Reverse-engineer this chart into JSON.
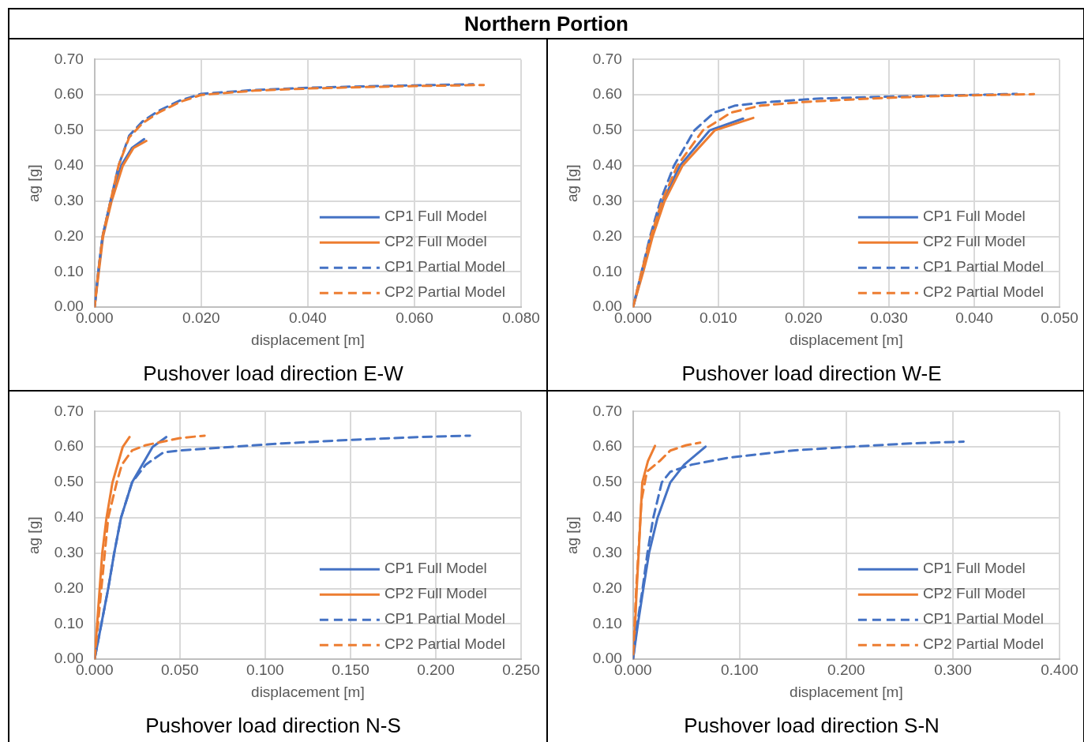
{
  "chart_data": [
    {
      "type": "other",
      "title": "Northern Portion"
    },
    {
      "type": "line",
      "title": "Pushover load direction E-W",
      "xlabel": "displacement [m]",
      "ylabel": "ag [g]",
      "grid": true,
      "legend": "bottom right",
      "marker": "none",
      "xlim": [
        0,
        0.08
      ],
      "xticks": [
        {
          "value": 0,
          "label": "0.000"
        },
        {
          "value": 0.02,
          "label": "0.020"
        },
        {
          "value": 0.04,
          "label": "0.040"
        },
        {
          "value": 0.06,
          "label": "0.060"
        },
        {
          "value": 0.08,
          "label": "0.080"
        }
      ],
      "ylim": [
        0,
        0.7
      ],
      "yticks": [
        {
          "value": 0,
          "label": "0.00"
        },
        {
          "value": 0.1,
          "label": "0.10"
        },
        {
          "value": 0.2,
          "label": "0.20"
        },
        {
          "value": 0.3,
          "label": "0.30"
        },
        {
          "value": 0.4,
          "label": "0.40"
        },
        {
          "value": 0.5,
          "label": "0.50"
        },
        {
          "value": 0.6,
          "label": "0.60"
        },
        {
          "value": 0.7,
          "label": "0.70"
        }
      ],
      "series": [
        {
          "name": "CP1 Full Model",
          "color": "#4472c4",
          "line_style": "solid",
          "x": [
            0,
            0.0007,
            0.0015,
            0.003,
            0.005,
            0.007,
            0.0093
          ],
          "values": [
            0,
            0.1,
            0.2,
            0.3,
            0.4,
            0.45,
            0.475
          ]
        },
        {
          "name": "CP2 Full Model",
          "color": "#ed7d31",
          "line_style": "solid",
          "x": [
            0,
            0.0008,
            0.0016,
            0.0032,
            0.0053,
            0.0073,
            0.0097
          ],
          "values": [
            0,
            0.1,
            0.2,
            0.3,
            0.4,
            0.45,
            0.47
          ]
        },
        {
          "name": "CP1 Partial Model",
          "color": "#4472c4",
          "line_style": "dashed",
          "x": [
            0,
            0.0007,
            0.0015,
            0.003,
            0.0045,
            0.0065,
            0.009,
            0.012,
            0.016,
            0.02,
            0.03,
            0.04,
            0.05,
            0.06,
            0.071
          ],
          "values": [
            0,
            0.1,
            0.2,
            0.3,
            0.4,
            0.485,
            0.525,
            0.555,
            0.584,
            0.603,
            0.614,
            0.62,
            0.624,
            0.627,
            0.63
          ]
        },
        {
          "name": "CP2 Partial Model",
          "color": "#ed7d31",
          "line_style": "dashed",
          "x": [
            0,
            0.0007,
            0.0015,
            0.003,
            0.0045,
            0.0065,
            0.009,
            0.012,
            0.016,
            0.02,
            0.03,
            0.04,
            0.05,
            0.06,
            0.073
          ],
          "values": [
            0,
            0.1,
            0.2,
            0.3,
            0.4,
            0.48,
            0.52,
            0.55,
            0.58,
            0.6,
            0.612,
            0.618,
            0.622,
            0.625,
            0.628
          ]
        }
      ]
    },
    {
      "type": "line",
      "title": "Pushover load direction W-E",
      "xlabel": "displacement [m]",
      "ylabel": "ag [g]",
      "grid": true,
      "legend": "bottom right",
      "marker": "none",
      "xlim": [
        0,
        0.05
      ],
      "xticks": [
        {
          "value": 0,
          "label": "0.000"
        },
        {
          "value": 0.01,
          "label": "0.010"
        },
        {
          "value": 0.02,
          "label": "0.020"
        },
        {
          "value": 0.03,
          "label": "0.030"
        },
        {
          "value": 0.04,
          "label": "0.040"
        },
        {
          "value": 0.05,
          "label": "0.050"
        }
      ],
      "ylim": [
        0,
        0.7
      ],
      "yticks": [
        {
          "value": 0,
          "label": "0.00"
        },
        {
          "value": 0.1,
          "label": "0.10"
        },
        {
          "value": 0.2,
          "label": "0.20"
        },
        {
          "value": 0.3,
          "label": "0.30"
        },
        {
          "value": 0.4,
          "label": "0.40"
        },
        {
          "value": 0.5,
          "label": "0.50"
        },
        {
          "value": 0.6,
          "label": "0.60"
        },
        {
          "value": 0.7,
          "label": "0.70"
        }
      ],
      "series": [
        {
          "name": "CP1 Full Model",
          "color": "#4472c4",
          "line_style": "solid",
          "x": [
            0,
            0.0011,
            0.0022,
            0.0035,
            0.0055,
            0.009,
            0.0129
          ],
          "values": [
            0,
            0.1,
            0.2,
            0.3,
            0.4,
            0.5,
            0.533
          ]
        },
        {
          "name": "CP2 Full Model",
          "color": "#ed7d31",
          "line_style": "solid",
          "x": [
            0,
            0.0012,
            0.0023,
            0.0037,
            0.0058,
            0.0096,
            0.0141
          ],
          "values": [
            0,
            0.1,
            0.2,
            0.3,
            0.4,
            0.5,
            0.535
          ]
        },
        {
          "name": "CP1 Partial Model",
          "color": "#4472c4",
          "line_style": "dashed",
          "x": [
            0,
            0.001,
            0.002,
            0.0032,
            0.0048,
            0.0072,
            0.0095,
            0.012,
            0.016,
            0.022,
            0.03,
            0.04,
            0.045
          ],
          "values": [
            0,
            0.1,
            0.2,
            0.3,
            0.4,
            0.5,
            0.55,
            0.57,
            0.58,
            0.59,
            0.595,
            0.6,
            0.603
          ]
        },
        {
          "name": "CP2 Partial Model",
          "color": "#ed7d31",
          "line_style": "dashed",
          "x": [
            0,
            0.001,
            0.0021,
            0.0034,
            0.0052,
            0.0082,
            0.0115,
            0.015,
            0.02,
            0.028,
            0.036,
            0.047
          ],
          "values": [
            0,
            0.1,
            0.2,
            0.3,
            0.4,
            0.5,
            0.55,
            0.57,
            0.58,
            0.59,
            0.597,
            0.602
          ]
        }
      ]
    },
    {
      "type": "line",
      "title": "Pushover load direction N-S",
      "xlabel": "displacement [m]",
      "ylabel": "ag [g]",
      "grid": true,
      "legend": "bottom right",
      "marker": "none",
      "xlim": [
        0,
        0.25
      ],
      "xticks": [
        {
          "value": 0,
          "label": "0.000"
        },
        {
          "value": 0.05,
          "label": "0.050"
        },
        {
          "value": 0.1,
          "label": "0.100"
        },
        {
          "value": 0.15,
          "label": "0.150"
        },
        {
          "value": 0.2,
          "label": "0.200"
        },
        {
          "value": 0.25,
          "label": "0.250"
        }
      ],
      "ylim": [
        0,
        0.7
      ],
      "yticks": [
        {
          "value": 0,
          "label": "0.00"
        },
        {
          "value": 0.1,
          "label": "0.10"
        },
        {
          "value": 0.2,
          "label": "0.20"
        },
        {
          "value": 0.3,
          "label": "0.30"
        },
        {
          "value": 0.4,
          "label": "0.40"
        },
        {
          "value": 0.5,
          "label": "0.50"
        },
        {
          "value": 0.6,
          "label": "0.60"
        },
        {
          "value": 0.7,
          "label": "0.70"
        }
      ],
      "series": [
        {
          "name": "CP1 Full Model",
          "color": "#4472c4",
          "line_style": "solid",
          "x": [
            0,
            0.004,
            0.008,
            0.0115,
            0.0155,
            0.022,
            0.034,
            0.042
          ],
          "values": [
            0,
            0.1,
            0.2,
            0.3,
            0.4,
            0.5,
            0.6,
            0.628
          ]
        },
        {
          "name": "CP2 Full Model",
          "color": "#ed7d31",
          "line_style": "solid",
          "x": [
            0,
            0.0015,
            0.003,
            0.0045,
            0.007,
            0.0105,
            0.0165,
            0.0205
          ],
          "values": [
            0,
            0.1,
            0.2,
            0.3,
            0.4,
            0.5,
            0.6,
            0.628
          ]
        },
        {
          "name": "CP1 Partial Model",
          "color": "#4472c4",
          "line_style": "dashed",
          "x": [
            0,
            0.004,
            0.008,
            0.0115,
            0.0155,
            0.022,
            0.03,
            0.0405,
            0.05,
            0.08,
            0.11,
            0.15,
            0.19,
            0.22
          ],
          "values": [
            0,
            0.1,
            0.2,
            0.3,
            0.4,
            0.5,
            0.55,
            0.585,
            0.59,
            0.6,
            0.61,
            0.62,
            0.628,
            0.632
          ]
        },
        {
          "name": "CP2 Partial Model",
          "color": "#ed7d31",
          "line_style": "dashed",
          "x": [
            0,
            0.002,
            0.004,
            0.006,
            0.008,
            0.013,
            0.016,
            0.022,
            0.03,
            0.04,
            0.05,
            0.0645
          ],
          "values": [
            0,
            0.1,
            0.2,
            0.3,
            0.4,
            0.5,
            0.55,
            0.59,
            0.605,
            0.615,
            0.625,
            0.632
          ]
        }
      ]
    },
    {
      "type": "line",
      "title": "Pushover load direction S-N",
      "xlabel": "displacement [m]",
      "ylabel": "ag [g]",
      "grid": true,
      "legend": "bottom right",
      "marker": "none",
      "xlim": [
        0,
        0.4
      ],
      "xticks": [
        {
          "value": 0,
          "label": "0.000"
        },
        {
          "value": 0.1,
          "label": "0.100"
        },
        {
          "value": 0.2,
          "label": "0.200"
        },
        {
          "value": 0.3,
          "label": "0.300"
        },
        {
          "value": 0.4,
          "label": "0.400"
        }
      ],
      "ylim": [
        0,
        0.7
      ],
      "yticks": [
        {
          "value": 0,
          "label": "0.00"
        },
        {
          "value": 0.1,
          "label": "0.10"
        },
        {
          "value": 0.2,
          "label": "0.20"
        },
        {
          "value": 0.3,
          "label": "0.30"
        },
        {
          "value": 0.4,
          "label": "0.40"
        },
        {
          "value": 0.5,
          "label": "0.50"
        },
        {
          "value": 0.6,
          "label": "0.60"
        },
        {
          "value": 0.7,
          "label": "0.70"
        }
      ],
      "series": [
        {
          "name": "CP1 Full Model",
          "color": "#4472c4",
          "line_style": "solid",
          "x": [
            0,
            0.0046,
            0.0097,
            0.015,
            0.023,
            0.035,
            0.048,
            0.068
          ],
          "values": [
            0,
            0.1,
            0.2,
            0.3,
            0.4,
            0.5,
            0.55,
            0.601
          ]
        },
        {
          "name": "CP2 Full Model",
          "color": "#ed7d31",
          "line_style": "solid",
          "x": [
            0,
            0.002,
            0.0035,
            0.0053,
            0.007,
            0.0087,
            0.014,
            0.0206
          ],
          "values": [
            0,
            0.1,
            0.2,
            0.3,
            0.4,
            0.5,
            0.56,
            0.603
          ]
        },
        {
          "name": "CP1 Partial Model",
          "color": "#4472c4",
          "line_style": "dashed",
          "x": [
            0,
            0.004,
            0.009,
            0.0135,
            0.019,
            0.027,
            0.035,
            0.055,
            0.09,
            0.15,
            0.2,
            0.26,
            0.31
          ],
          "values": [
            0,
            0.1,
            0.2,
            0.3,
            0.4,
            0.5,
            0.53,
            0.55,
            0.57,
            0.59,
            0.6,
            0.61,
            0.615
          ]
        },
        {
          "name": "CP2 Partial Model",
          "color": "#ed7d31",
          "line_style": "dashed",
          "x": [
            0,
            0.0015,
            0.003,
            0.005,
            0.008,
            0.013,
            0.025,
            0.035,
            0.05,
            0.063
          ],
          "values": [
            0,
            0.1,
            0.2,
            0.3,
            0.45,
            0.53,
            0.56,
            0.59,
            0.605,
            0.612
          ]
        }
      ]
    }
  ]
}
